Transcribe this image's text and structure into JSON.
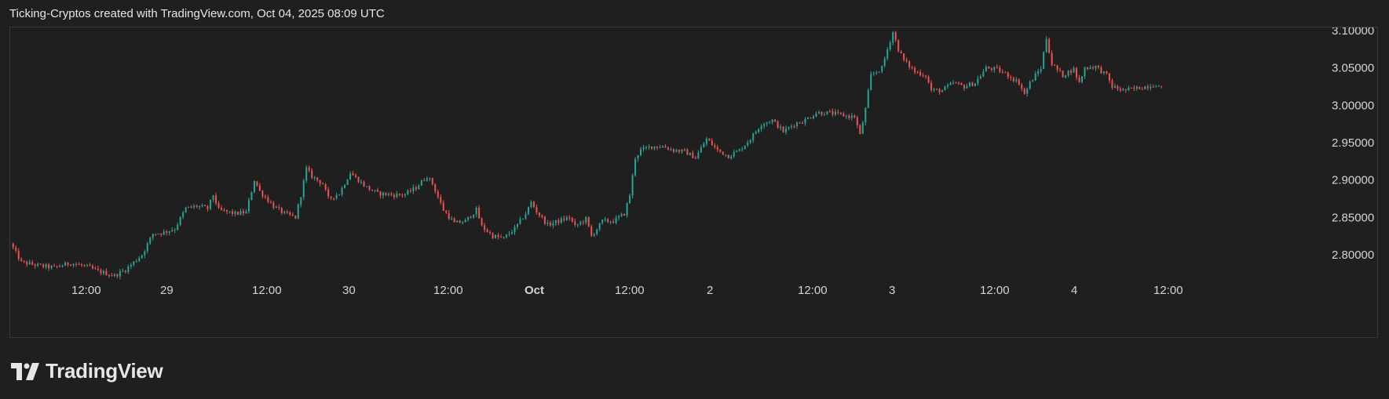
{
  "header": {
    "attribution": "Ticking-Cryptos created with TradingView.com, Oct 04, 2025 08:09 UTC"
  },
  "brand": {
    "logo_text": "TradingView",
    "icon": "tradingview-logo-icon"
  },
  "colors": {
    "background": "#1f1f1f",
    "border": "#3a3a3a",
    "up": "#26a69a",
    "down": "#ef5350",
    "text": "#d1d4dc"
  },
  "chart_data": {
    "type": "candlestick",
    "price_axis": {
      "position": "right",
      "ticks": [
        "3.10000",
        "3.05000",
        "3.00000",
        "2.95000",
        "2.90000",
        "2.85000",
        "2.80000"
      ],
      "ylim": [
        2.765,
        3.107
      ]
    },
    "time_axis": {
      "ticks": [
        {
          "label": "12:00",
          "bold": false
        },
        {
          "label": "29",
          "bold": false
        },
        {
          "label": "12:00",
          "bold": false
        },
        {
          "label": "30",
          "bold": false
        },
        {
          "label": "12:00",
          "bold": false
        },
        {
          "label": "Oct",
          "bold": true
        },
        {
          "label": "12:00",
          "bold": false
        },
        {
          "label": "2",
          "bold": false
        },
        {
          "label": "12:00",
          "bold": false
        },
        {
          "label": "3",
          "bold": false
        },
        {
          "label": "12:00",
          "bold": false
        },
        {
          "label": "4",
          "bold": false
        },
        {
          "label": "12:00",
          "bold": false
        }
      ]
    },
    "grid": false,
    "price_path": [
      [
        0,
        2.815
      ],
      [
        4,
        2.79
      ],
      [
        11,
        2.785
      ],
      [
        16,
        2.783
      ],
      [
        22,
        2.789
      ],
      [
        28,
        2.784
      ],
      [
        32,
        2.778
      ],
      [
        38,
        2.772
      ],
      [
        42,
        2.78
      ],
      [
        48,
        2.8
      ],
      [
        52,
        2.828
      ],
      [
        56,
        2.83
      ],
      [
        60,
        2.835
      ],
      [
        64,
        2.862
      ],
      [
        68,
        2.865
      ],
      [
        72,
        2.862
      ],
      [
        74,
        2.88
      ],
      [
        76,
        2.86
      ],
      [
        82,
        2.855
      ],
      [
        86,
        2.857
      ],
      [
        89,
        2.9
      ],
      [
        91,
        2.885
      ],
      [
        96,
        2.865
      ],
      [
        100,
        2.855
      ],
      [
        104,
        2.85
      ],
      [
        106,
        2.88
      ],
      [
        108,
        2.915
      ],
      [
        110,
        2.905
      ],
      [
        114,
        2.895
      ],
      [
        116,
        2.875
      ],
      [
        120,
        2.882
      ],
      [
        124,
        2.91
      ],
      [
        126,
        2.903
      ],
      [
        130,
        2.89
      ],
      [
        134,
        2.882
      ],
      [
        140,
        2.88
      ],
      [
        144,
        2.881
      ],
      [
        148,
        2.89
      ],
      [
        152,
        2.905
      ],
      [
        154,
        2.895
      ],
      [
        158,
        2.86
      ],
      [
        162,
        2.842
      ],
      [
        166,
        2.845
      ],
      [
        170,
        2.86
      ],
      [
        172,
        2.838
      ],
      [
        176,
        2.825
      ],
      [
        180,
        2.822
      ],
      [
        184,
        2.835
      ],
      [
        188,
        2.855
      ],
      [
        190,
        2.87
      ],
      [
        192,
        2.858
      ],
      [
        196,
        2.84
      ],
      [
        200,
        2.845
      ],
      [
        204,
        2.85
      ],
      [
        206,
        2.838
      ],
      [
        210,
        2.848
      ],
      [
        212,
        2.825
      ],
      [
        216,
        2.845
      ],
      [
        220,
        2.845
      ],
      [
        224,
        2.855
      ],
      [
        226,
        2.88
      ],
      [
        228,
        2.93
      ],
      [
        230,
        2.94
      ],
      [
        234,
        2.945
      ],
      [
        238,
        2.945
      ],
      [
        242,
        2.94
      ],
      [
        246,
        2.938
      ],
      [
        250,
        2.93
      ],
      [
        254,
        2.955
      ],
      [
        258,
        2.94
      ],
      [
        262,
        2.932
      ],
      [
        266,
        2.94
      ],
      [
        270,
        2.955
      ],
      [
        274,
        2.975
      ],
      [
        278,
        2.98
      ],
      [
        282,
        2.965
      ],
      [
        286,
        2.975
      ],
      [
        290,
        2.98
      ],
      [
        294,
        2.99
      ],
      [
        298,
        2.99
      ],
      [
        302,
        2.988
      ],
      [
        306,
        2.985
      ],
      [
        308,
        2.985
      ],
      [
        310,
        2.96
      ],
      [
        312,
        2.995
      ],
      [
        314,
        3.04
      ],
      [
        318,
        3.05
      ],
      [
        320,
        3.075
      ],
      [
        322,
        3.098
      ],
      [
        324,
        3.075
      ],
      [
        326,
        3.06
      ],
      [
        330,
        3.045
      ],
      [
        334,
        3.04
      ],
      [
        336,
        3.02
      ],
      [
        340,
        3.02
      ],
      [
        344,
        3.03
      ],
      [
        348,
        3.025
      ],
      [
        352,
        3.03
      ],
      [
        356,
        3.05
      ],
      [
        360,
        3.048
      ],
      [
        364,
        3.04
      ],
      [
        368,
        3.03
      ],
      [
        370,
        3.015
      ],
      [
        372,
        3.03
      ],
      [
        376,
        3.05
      ],
      [
        378,
        3.09
      ],
      [
        380,
        3.055
      ],
      [
        384,
        3.04
      ],
      [
        386,
        3.045
      ],
      [
        388,
        3.048
      ],
      [
        390,
        3.03
      ],
      [
        392,
        3.05
      ],
      [
        396,
        3.052
      ],
      [
        400,
        3.04
      ],
      [
        402,
        3.025
      ],
      [
        406,
        3.02
      ],
      [
        410,
        3.022
      ],
      [
        414,
        3.025
      ],
      [
        418,
        3.028
      ],
      [
        420,
        3.022
      ]
    ],
    "candle_count": 420
  }
}
